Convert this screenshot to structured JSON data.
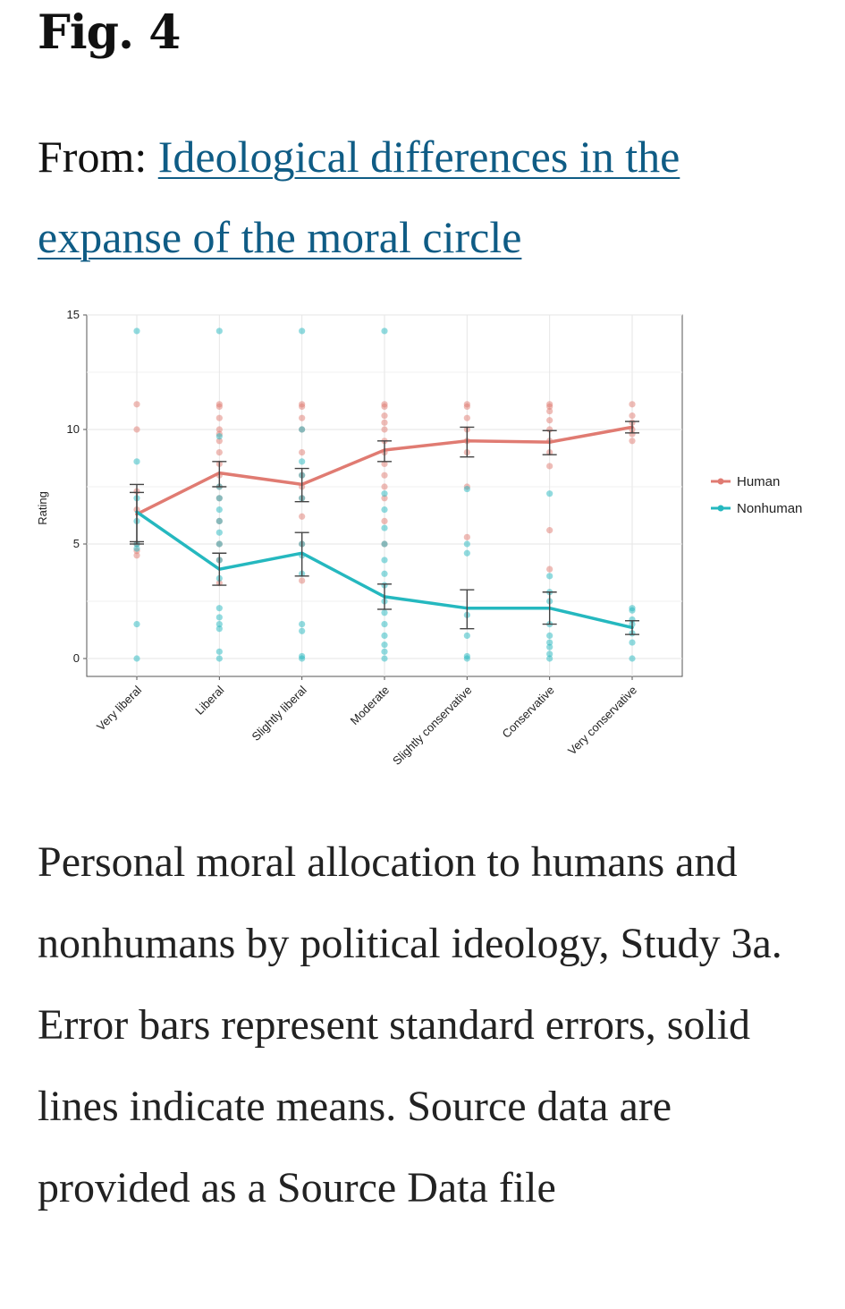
{
  "figure": {
    "title": "Fig. 4",
    "from_prefix": "From:",
    "link_text": "Ideological differences in the expanse of the moral circle"
  },
  "caption": "Personal moral allocation to humans and nonhumans by political ideology, Study 3a. Error bars represent standard errors, solid lines indicate means. Source data are provided as a Source Data file",
  "chart_data": {
    "type": "line",
    "title": "",
    "xlabel": "",
    "ylabel": "Rating",
    "ylim": [
      0,
      15
    ],
    "yticks": [
      0,
      5,
      10,
      15
    ],
    "grid": true,
    "legend_position": "right",
    "categories": [
      "Very liberal",
      "Liberal",
      "Slightly liberal",
      "Moderate",
      "Slightly conservative",
      "Conservative",
      "Very conservative"
    ],
    "series": [
      {
        "name": "Human",
        "color": "#e07b72",
        "means": [
          6.3,
          8.1,
          7.6,
          9.1,
          9.5,
          9.45,
          10.1
        ],
        "se_low": [
          5.0,
          7.5,
          6.85,
          8.6,
          8.8,
          8.9,
          9.85
        ],
        "se_high": [
          7.6,
          8.6,
          8.3,
          9.5,
          10.1,
          9.95,
          10.35
        ],
        "points": [
          [
            4.5,
            4.7,
            5.0,
            6.5,
            7.3,
            10.0,
            11.1
          ],
          [
            3.3,
            4.3,
            5.0,
            6.0,
            7.0,
            7.5,
            8.0,
            8.5,
            9.0,
            9.5,
            9.8,
            10.0,
            10.5,
            11.0,
            11.1
          ],
          [
            3.4,
            5.0,
            6.2,
            7.0,
            7.5,
            8.0,
            9.0,
            10.0,
            10.5,
            11.0,
            11.1
          ],
          [
            5.0,
            6.0,
            7.0,
            7.5,
            8.0,
            8.5,
            9.0,
            9.5,
            10.0,
            10.3,
            10.6,
            11.0,
            11.1
          ],
          [
            5.3,
            7.5,
            9.0,
            9.5,
            10.0,
            10.5,
            11.0,
            11.1
          ],
          [
            3.9,
            5.6,
            8.4,
            9.0,
            9.5,
            10.0,
            10.4,
            10.8,
            11.0,
            11.1
          ],
          [
            9.5,
            9.8,
            10.0,
            10.3,
            10.6,
            11.1
          ]
        ]
      },
      {
        "name": "Nonhuman",
        "color": "#25b8bf",
        "means": [
          6.4,
          3.9,
          4.6,
          2.7,
          2.2,
          2.2,
          1.35
        ],
        "se_low": [
          5.1,
          3.2,
          3.6,
          2.15,
          1.3,
          1.5,
          1.05
        ],
        "se_high": [
          7.25,
          4.6,
          5.5,
          3.25,
          3.0,
          2.9,
          1.65
        ],
        "points": [
          [
            0.0,
            1.5,
            4.8,
            5.0,
            6.0,
            7.0,
            8.6,
            14.3
          ],
          [
            0.0,
            0.3,
            1.3,
            1.5,
            1.8,
            2.2,
            3.5,
            4.3,
            5.0,
            5.5,
            6.0,
            6.5,
            7.0,
            7.5,
            9.7,
            14.3
          ],
          [
            0.0,
            0.1,
            1.2,
            1.5,
            3.7,
            4.5,
            5.0,
            7.0,
            8.0,
            8.6,
            10.0,
            14.3
          ],
          [
            0.0,
            0.3,
            0.6,
            1.0,
            1.5,
            2.0,
            2.5,
            3.2,
            3.7,
            4.3,
            5.0,
            5.7,
            6.5,
            7.2,
            14.3
          ],
          [
            0.0,
            0.1,
            1.0,
            1.9,
            4.6,
            5.0,
            7.4
          ],
          [
            0.0,
            0.2,
            0.5,
            0.7,
            1.0,
            1.5,
            2.5,
            2.9,
            3.6,
            7.2
          ],
          [
            0.0,
            0.7,
            1.1,
            1.5,
            1.7,
            2.1,
            2.2
          ]
        ]
      }
    ]
  }
}
